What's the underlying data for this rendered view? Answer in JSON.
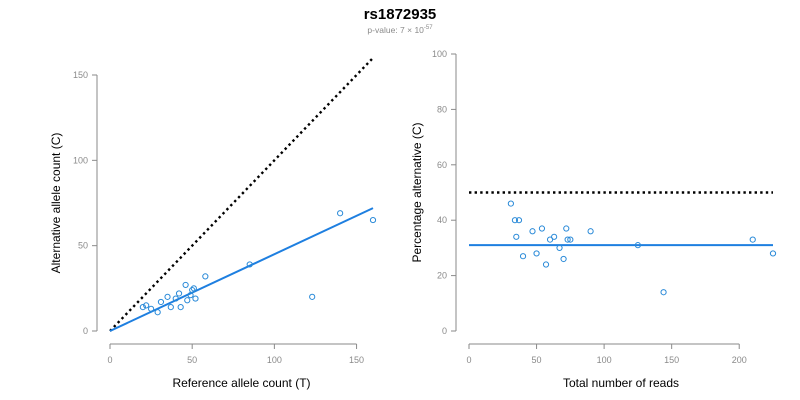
{
  "header": {
    "title": "rs1872935",
    "subtitle_prefix": "p-value: 7 × 10",
    "subtitle_exponent": "-57"
  },
  "colors": {
    "points": "#2a8ad8",
    "fit_line": "#1e7fe0",
    "reference_line": "#000000",
    "axis": "#8a8a8a"
  },
  "chart_data": [
    {
      "type": "scatter",
      "xlabel": "Reference allele count (T)",
      "ylabel": "Alternative allele count (C)",
      "xlim": [
        0,
        160
      ],
      "ylim": [
        0,
        150
      ],
      "xticks": [
        0,
        50,
        100,
        150
      ],
      "yticks": [
        0,
        50,
        100,
        150
      ],
      "grid": false,
      "points": [
        {
          "x": 20,
          "y": 14
        },
        {
          "x": 22,
          "y": 15
        },
        {
          "x": 25,
          "y": 13
        },
        {
          "x": 29,
          "y": 11
        },
        {
          "x": 31,
          "y": 17
        },
        {
          "x": 35,
          "y": 20
        },
        {
          "x": 37,
          "y": 14
        },
        {
          "x": 40,
          "y": 19
        },
        {
          "x": 42,
          "y": 22
        },
        {
          "x": 43,
          "y": 14
        },
        {
          "x": 46,
          "y": 27
        },
        {
          "x": 47,
          "y": 18
        },
        {
          "x": 49,
          "y": 21
        },
        {
          "x": 50,
          "y": 24
        },
        {
          "x": 51,
          "y": 25
        },
        {
          "x": 52,
          "y": 19
        },
        {
          "x": 58,
          "y": 32
        },
        {
          "x": 85,
          "y": 39
        },
        {
          "x": 123,
          "y": 20
        },
        {
          "x": 140,
          "y": 69
        },
        {
          "x": 160,
          "y": 65
        }
      ],
      "fit_line": {
        "x": [
          0,
          160
        ],
        "y": [
          0,
          72
        ]
      },
      "reference_line": {
        "x": [
          0,
          160
        ],
        "y": [
          0,
          160
        ]
      }
    },
    {
      "type": "scatter",
      "xlabel": "Total number of reads",
      "ylabel": "Percentage alternative (C)",
      "xlim": [
        0,
        225
      ],
      "ylim": [
        0,
        100
      ],
      "xticks": [
        0,
        50,
        100,
        150,
        200
      ],
      "yticks": [
        0,
        20,
        40,
        60,
        80,
        100
      ],
      "grid": false,
      "points": [
        {
          "x": 31,
          "y": 46
        },
        {
          "x": 34,
          "y": 40
        },
        {
          "x": 35,
          "y": 34
        },
        {
          "x": 37,
          "y": 40
        },
        {
          "x": 40,
          "y": 27
        },
        {
          "x": 47,
          "y": 36
        },
        {
          "x": 50,
          "y": 28
        },
        {
          "x": 54,
          "y": 37
        },
        {
          "x": 57,
          "y": 24
        },
        {
          "x": 60,
          "y": 33
        },
        {
          "x": 63,
          "y": 34
        },
        {
          "x": 67,
          "y": 30
        },
        {
          "x": 70,
          "y": 26
        },
        {
          "x": 72,
          "y": 37
        },
        {
          "x": 73,
          "y": 33
        },
        {
          "x": 75,
          "y": 33
        },
        {
          "x": 90,
          "y": 36
        },
        {
          "x": 125,
          "y": 31
        },
        {
          "x": 144,
          "y": 14
        },
        {
          "x": 210,
          "y": 33
        },
        {
          "x": 225,
          "y": 28
        }
      ],
      "fit_line": {
        "x": [
          0,
          225
        ],
        "y": [
          31,
          31
        ]
      },
      "reference_line": {
        "x": [
          0,
          225
        ],
        "y": [
          50,
          50
        ]
      }
    }
  ]
}
